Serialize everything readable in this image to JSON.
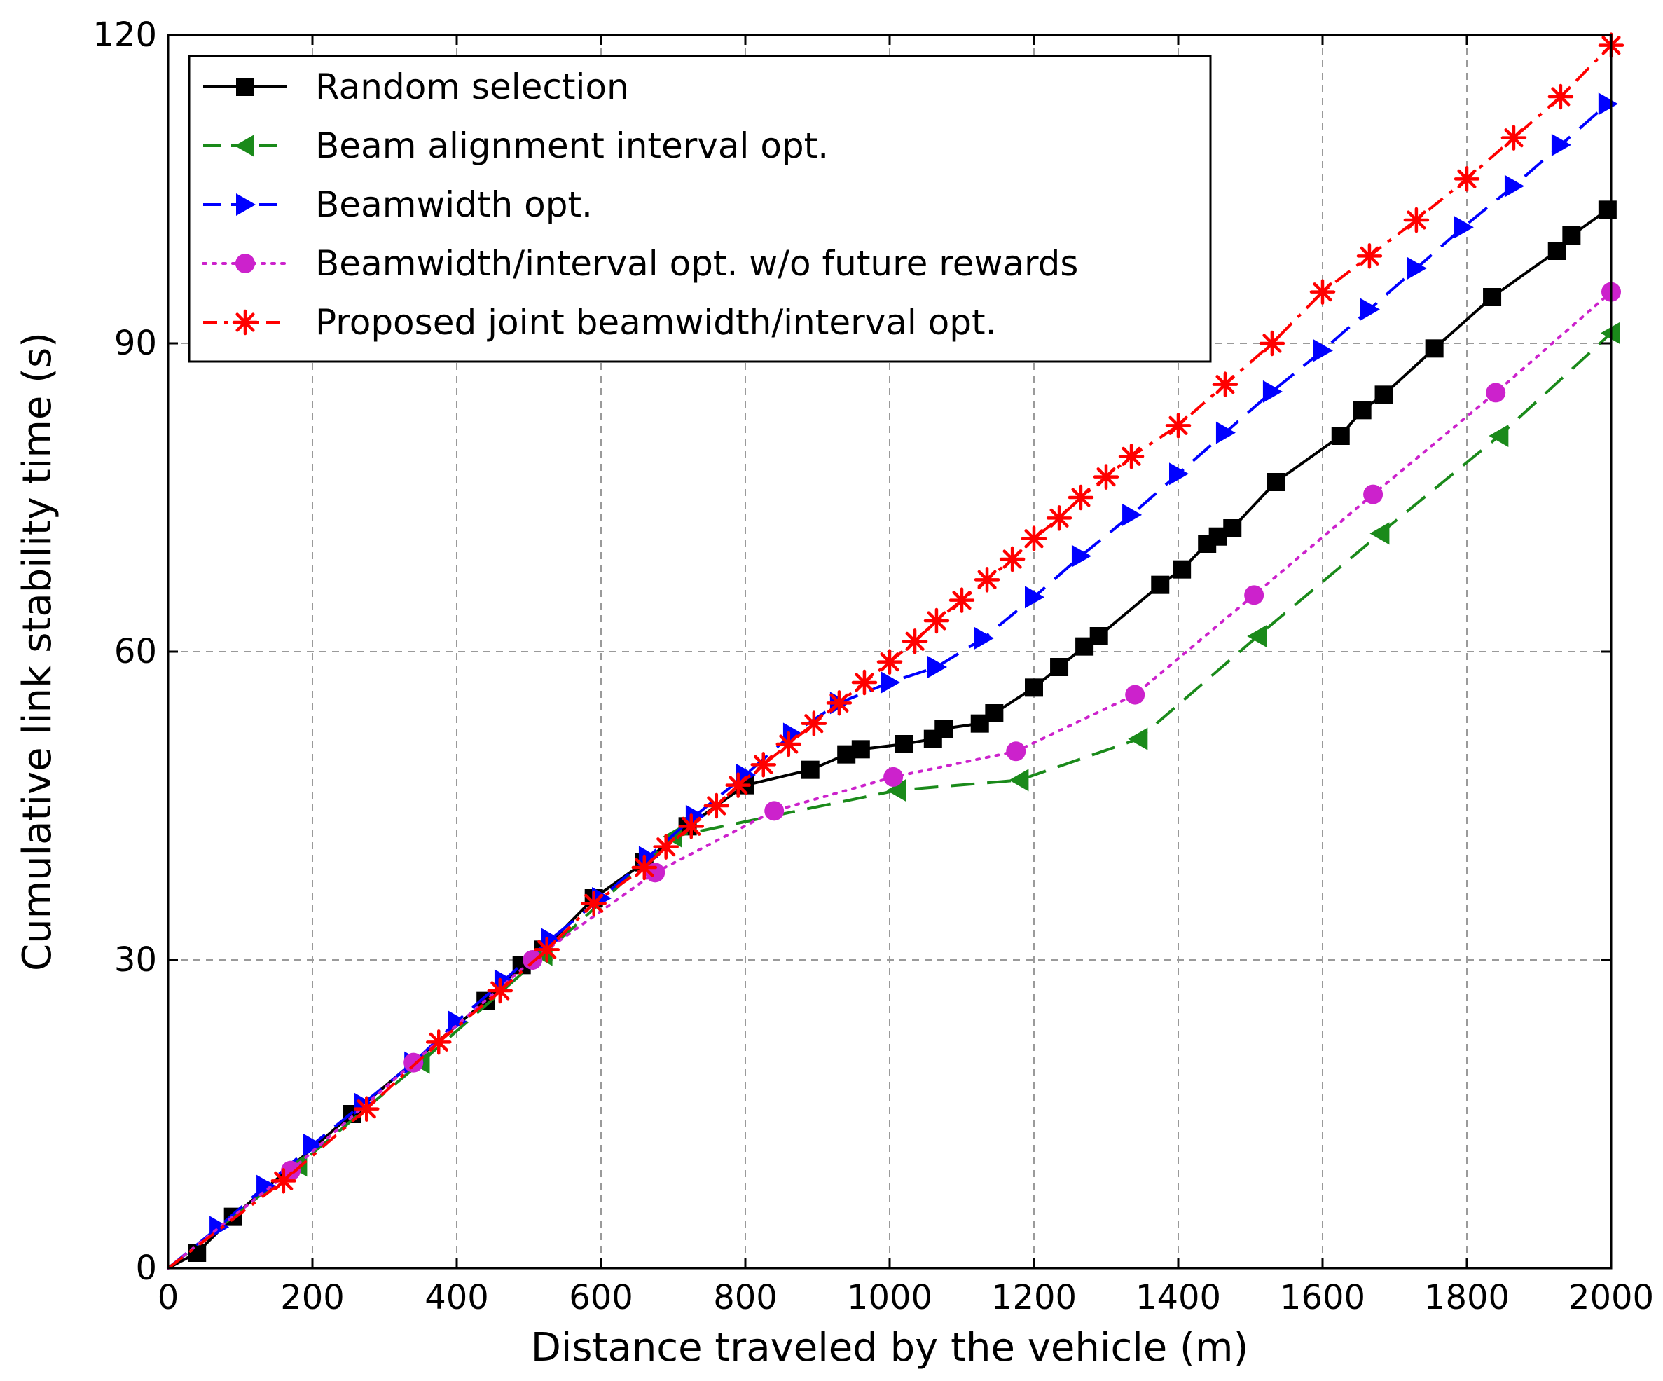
{
  "chart_data": {
    "type": "line",
    "title": "",
    "xlabel": "Distance traveled by the vehicle (m)",
    "ylabel": "Cumulative link stability time (s)",
    "xlim": [
      0,
      2000
    ],
    "ylim": [
      0,
      120
    ],
    "xticks": [
      0,
      200,
      400,
      600,
      800,
      1000,
      1200,
      1400,
      1600,
      1800,
      2000
    ],
    "yticks": [
      0,
      30,
      60,
      90,
      120
    ],
    "grid": true,
    "legend_position": "top-left",
    "series": [
      {
        "name": "Random selection",
        "color": "#000000",
        "dash": "solid",
        "marker": "square",
        "x": [
          0,
          40,
          90,
          255,
          440,
          490,
          520,
          590,
          660,
          720,
          800,
          890,
          940,
          960,
          1020,
          1060,
          1075,
          1125,
          1145,
          1200,
          1235,
          1270,
          1290,
          1375,
          1405,
          1440,
          1455,
          1475,
          1535,
          1625,
          1655,
          1685,
          1755,
          1835,
          1925,
          1945,
          1995
        ],
        "y": [
          0,
          1.5,
          5,
          15,
          26,
          29.5,
          31,
          36,
          39.5,
          43,
          47,
          48.5,
          50,
          50.5,
          51,
          51.5,
          52.5,
          53,
          54,
          56.5,
          58.5,
          60.5,
          61.5,
          66.5,
          68,
          70.5,
          71.2,
          72,
          76.5,
          81,
          83.5,
          85,
          89.5,
          94.5,
          99,
          100.5,
          103
        ]
      },
      {
        "name": "Beam alignment interval opt.",
        "color": "#1a8a1a",
        "dash": "dashed",
        "marker": "triangle-left",
        "x": [
          0,
          180,
          350,
          520,
          700,
          1010,
          1180,
          1345,
          1510,
          1680,
          1845,
          2000
        ],
        "y": [
          0,
          10,
          20,
          30.5,
          42,
          46.5,
          47.5,
          51.5,
          61.5,
          71.5,
          81,
          91
        ]
      },
      {
        "name": "Beamwidth opt.",
        "color": "#0000ff",
        "dash": "dashed",
        "marker": "triangle-right",
        "x": [
          0,
          70,
          135,
          200,
          270,
          340,
          400,
          465,
          530,
          600,
          665,
          730,
          800,
          865,
          930,
          1000,
          1065,
          1130,
          1200,
          1265,
          1335,
          1400,
          1465,
          1530,
          1600,
          1665,
          1730,
          1795,
          1865,
          1930,
          1995
        ],
        "y": [
          0,
          4,
          8,
          12,
          16,
          20,
          24,
          28,
          32,
          36,
          40,
          44,
          48,
          52,
          55,
          57,
          58.5,
          61.3,
          65.3,
          69.3,
          73.3,
          77.3,
          81.3,
          85.3,
          89.3,
          93.3,
          97.3,
          101.3,
          105.3,
          109.3,
          113.3
        ]
      },
      {
        "name": "Beamwidth/interval opt. w/o future rewards",
        "color": "#cc22cc",
        "dash": "dotted",
        "marker": "circle",
        "x": [
          0,
          170,
          340,
          505,
          675,
          840,
          1005,
          1175,
          1340,
          1505,
          1670,
          1840,
          2000
        ],
        "y": [
          0,
          9.5,
          20,
          30,
          38.5,
          44.5,
          47.8,
          50.3,
          55.8,
          65.5,
          75.3,
          85.2,
          95
        ]
      },
      {
        "name": "Proposed joint beamwidth/interval opt.",
        "color": "#ff0000",
        "dash": "dashdot",
        "marker": "star",
        "x": [
          0,
          160,
          275,
          375,
          460,
          525,
          590,
          660,
          690,
          725,
          760,
          790,
          825,
          860,
          895,
          930,
          965,
          1000,
          1035,
          1065,
          1100,
          1135,
          1170,
          1200,
          1235,
          1265,
          1300,
          1335,
          1400,
          1465,
          1530,
          1600,
          1665,
          1730,
          1800,
          1865,
          1930,
          2000
        ],
        "y": [
          0,
          8.5,
          15.5,
          22,
          27,
          31,
          35.5,
          39,
          41,
          43,
          45,
          47,
          49,
          51,
          53,
          55,
          57,
          59,
          61,
          63,
          65,
          67,
          69,
          71,
          73,
          75,
          77,
          79,
          82,
          86,
          90,
          95,
          98.5,
          102,
          106,
          110,
          114,
          119
        ]
      }
    ]
  }
}
